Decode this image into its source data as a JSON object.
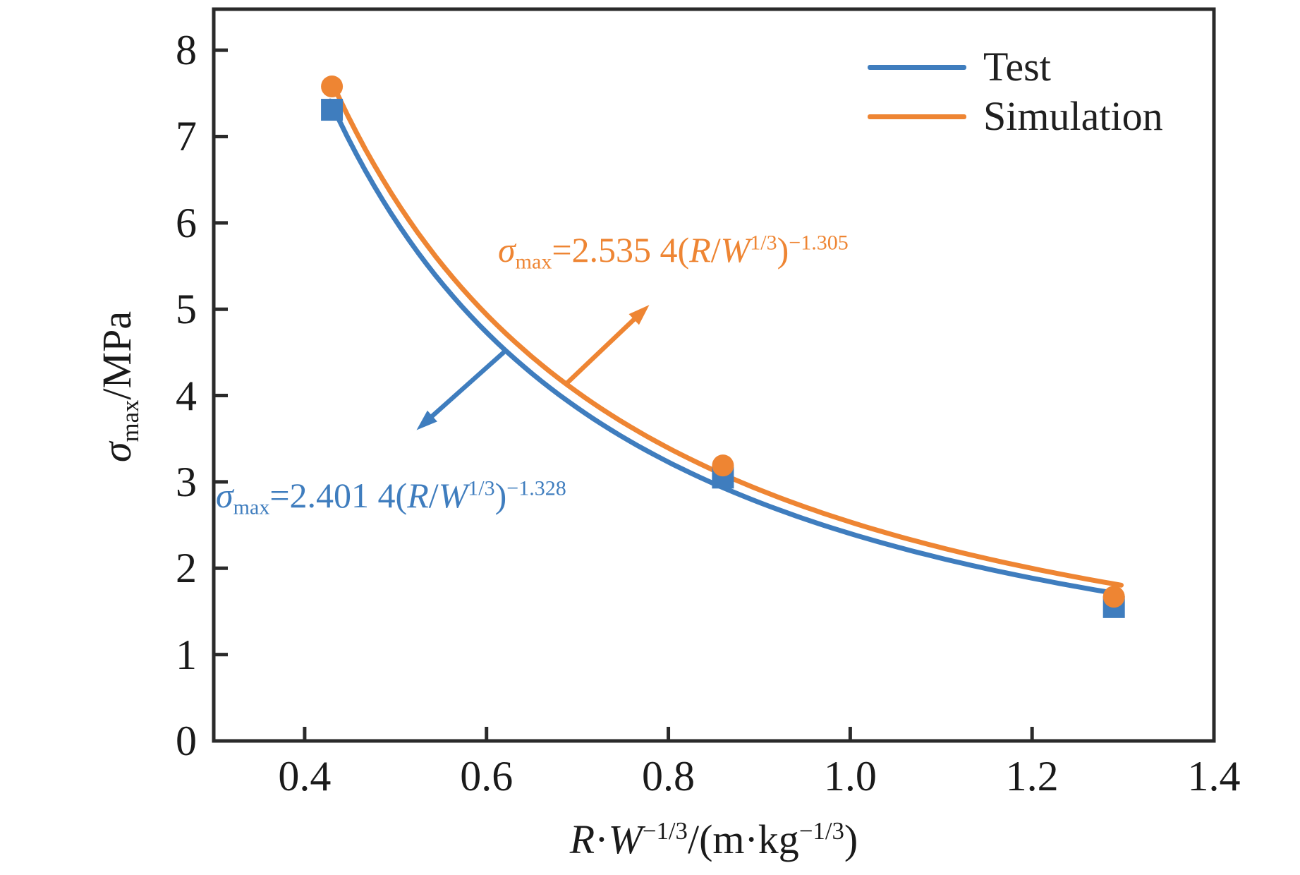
{
  "chart_data": {
    "type": "line",
    "title": "",
    "xlabel": "R·W−1/3/(m·kg−1/3)",
    "ylabel": "σmax/MPa",
    "xlabel_parts": [
      {
        "t": "R",
        "s": "it"
      },
      {
        "t": "·",
        "s": "up"
      },
      {
        "t": "W",
        "s": "it"
      },
      {
        "t": "−1/3",
        "s": "sup"
      },
      {
        "t": "/(m·kg",
        "s": "up"
      },
      {
        "t": "−1/3",
        "s": "sup"
      },
      {
        "t": ")",
        "s": "up"
      }
    ],
    "ylabel_parts": [
      {
        "t": "σ",
        "s": "it"
      },
      {
        "t": "max",
        "s": "sub"
      },
      {
        "t": "/MPa",
        "s": "up"
      }
    ],
    "x_axis": {
      "values": [
        0.4,
        0.6,
        0.8,
        1.0,
        1.2,
        1.4
      ],
      "labels": [
        "0.4",
        "0.6",
        "0.8",
        "1.0",
        "1.2",
        "1.4"
      ],
      "range": [
        0.3,
        1.4
      ]
    },
    "y_axis": {
      "values": [
        0,
        1,
        2,
        3,
        4,
        5,
        6,
        7,
        8
      ],
      "labels": [
        "0",
        "1",
        "2",
        "3",
        "4",
        "5",
        "6",
        "7",
        "8"
      ],
      "range": [
        0,
        8.475
      ]
    },
    "grid": false,
    "legend_position": "top-right",
    "series": [
      {
        "name": "Test",
        "color": "#3F7DBE",
        "marker": "square",
        "points": [
          [
            0.43,
            7.31
          ],
          [
            0.86,
            3.05
          ],
          [
            1.29,
            1.55
          ]
        ],
        "fit": {
          "coef": 2.4014,
          "exp": -1.328,
          "x_min": 0.428,
          "x_max": 1.298
        },
        "equation": "σmax=2.401 4(R/W1/3)−1.328"
      },
      {
        "name": "Simulation",
        "color": "#EE8533",
        "marker": "circle",
        "points": [
          [
            0.43,
            7.58
          ],
          [
            0.86,
            3.19
          ],
          [
            1.29,
            1.67
          ]
        ],
        "fit": {
          "coef": 2.5354,
          "exp": -1.305,
          "x_min": 0.428,
          "x_max": 1.298
        },
        "equation": "σmax=2.535 4(R/W1/3)−1.305"
      }
    ],
    "annotations": [
      {
        "for_series": "Test",
        "color": "#3F7DBE",
        "parts": [
          {
            "t": "σ",
            "s": "it"
          },
          {
            "t": "max",
            "s": "sub"
          },
          {
            "t": "=2.401 4(",
            "s": "up"
          },
          {
            "t": "R",
            "s": "it"
          },
          {
            "t": "/",
            "s": "up"
          },
          {
            "t": "W",
            "s": "it"
          },
          {
            "t": "1/3",
            "s": "sup"
          },
          {
            "t": ")",
            "s": "up"
          },
          {
            "t": "−1.328",
            "s": "sup"
          }
        ],
        "arrow": {
          "from": [
            0.621,
            4.52
          ],
          "to": [
            0.523,
            3.6
          ]
        }
      },
      {
        "for_series": "Simulation",
        "color": "#EE8533",
        "parts": [
          {
            "t": "σ",
            "s": "it"
          },
          {
            "t": "max",
            "s": "sub"
          },
          {
            "t": "=2.535 4(",
            "s": "up"
          },
          {
            "t": "R",
            "s": "it"
          },
          {
            "t": "/",
            "s": "up"
          },
          {
            "t": "W",
            "s": "it"
          },
          {
            "t": "1/3",
            "s": "sup"
          },
          {
            "t": ")",
            "s": "up"
          },
          {
            "t": "−1.305",
            "s": "sup"
          }
        ],
        "arrow": {
          "from": [
            0.689,
            4.15
          ],
          "to": [
            0.779,
            5.05
          ]
        }
      }
    ],
    "axis_color": "#2a2a2a"
  }
}
